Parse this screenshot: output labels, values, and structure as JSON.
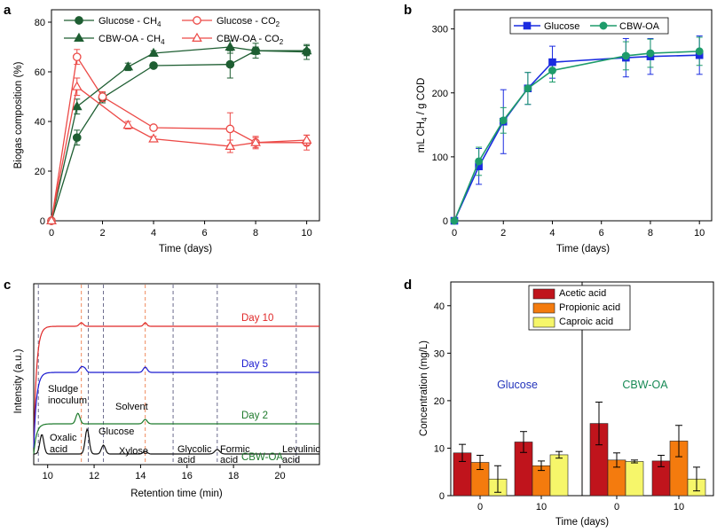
{
  "panels": {
    "a": "a",
    "b": "b",
    "c": "c",
    "d": "d"
  },
  "chart_data": [
    {
      "panel": "a",
      "type": "line",
      "xlabel": "Time (days)",
      "ylabel": "Biogas composition (%)",
      "xlim": [
        0,
        10.5
      ],
      "ylim": [
        0,
        85
      ],
      "xticks": [
        0,
        2,
        4,
        6,
        8,
        10
      ],
      "yticks": [
        0,
        20,
        40,
        60,
        80
      ],
      "legend_position": "top",
      "series": [
        {
          "name": "Glucose - CH4",
          "label": "Glucose - CH",
          "sub": "4",
          "color": "#1e5e32",
          "marker": "circle",
          "fill": true,
          "x": [
            0,
            1,
            2,
            4,
            7,
            8,
            10
          ],
          "y": [
            0,
            33.5,
            49.5,
            62.5,
            63,
            68.5,
            68
          ],
          "err": [
            0,
            3,
            2,
            1,
            5.5,
            3,
            3
          ]
        },
        {
          "name": "Glucose - CO2",
          "label": "Glucose - CO",
          "sub": "2",
          "color": "#ec4a47",
          "marker": "circle",
          "fill": false,
          "x": [
            0,
            1,
            2,
            4,
            7,
            8,
            10
          ],
          "y": [
            0,
            66,
            50,
            37.5,
            37,
            31.5,
            31.5
          ],
          "err": [
            0,
            3,
            2,
            1,
            6.5,
            2.5,
            3
          ]
        },
        {
          "name": "CBW-OA - CH4",
          "label": "CBW-OA - CH",
          "sub": "4",
          "color": "#1e5e32",
          "marker": "triangle",
          "fill": true,
          "x": [
            0,
            1,
            3,
            4,
            7,
            8,
            10
          ],
          "y": [
            0,
            46,
            62,
            67.5,
            70,
            68.5,
            68.5
          ],
          "err": [
            0,
            3,
            1.5,
            1,
            2.5,
            1.5,
            2
          ]
        },
        {
          "name": "CBW-OA - CO2",
          "label": "CBW-OA - CO",
          "sub": "2",
          "color": "#ec4a47",
          "marker": "triangle",
          "fill": false,
          "x": [
            0,
            1,
            3,
            4,
            7,
            8,
            10
          ],
          "y": [
            0,
            54,
            38.5,
            33,
            30,
            31.5,
            32.5
          ],
          "err": [
            0,
            3.5,
            1.5,
            1,
            2.5,
            2,
            2
          ]
        }
      ]
    },
    {
      "panel": "b",
      "type": "line",
      "xlabel": "Time (days)",
      "ylabel": "mL CH",
      "ylabel_sub": "4",
      "ylabel_rest": " / g COD",
      "xlim": [
        0,
        10.5
      ],
      "ylim": [
        0,
        330
      ],
      "xticks": [
        0,
        2,
        4,
        6,
        8,
        10
      ],
      "yticks": [
        0,
        100,
        200,
        300
      ],
      "legend_position": "top",
      "series": [
        {
          "name": "Glucose",
          "label": "Glucose",
          "color": "#1a2be0",
          "marker": "square",
          "x": [
            0,
            1,
            2,
            3,
            4,
            7,
            8,
            10
          ],
          "y": [
            0,
            85,
            155,
            207,
            248,
            255,
            257,
            259
          ],
          "err": [
            0,
            28,
            50,
            25,
            25,
            30,
            28,
            30
          ]
        },
        {
          "name": "CBW-OA",
          "label": "CBW-OA",
          "color": "#1e9c6b",
          "marker": "circle",
          "x": [
            0,
            1,
            2,
            3,
            4,
            7,
            8,
            10
          ],
          "y": [
            0,
            93,
            157,
            207,
            235,
            258,
            262,
            265
          ],
          "err": [
            0,
            22,
            20,
            25,
            18,
            22,
            22,
            22
          ]
        }
      ]
    },
    {
      "panel": "c",
      "type": "line",
      "xlabel": "Retention time (min)",
      "ylabel": "Intensity (a.u.)",
      "xlim": [
        9.4,
        21.7
      ],
      "xticks": [
        10,
        12,
        14,
        16,
        18,
        20
      ],
      "dashed_lines": [
        {
          "x": 9.6,
          "color": "#6b6b8c"
        },
        {
          "x": 11.45,
          "color": "#f08a5d"
        },
        {
          "x": 11.75,
          "color": "#6b6b8c"
        },
        {
          "x": 12.4,
          "color": "#6b6b8c"
        },
        {
          "x": 14.2,
          "color": "#f08a5d"
        },
        {
          "x": 15.4,
          "color": "#6b6b8c"
        },
        {
          "x": 17.3,
          "color": "#6b6b8c"
        },
        {
          "x": 20.7,
          "color": "#6b6b8c"
        }
      ],
      "traces": [
        {
          "name": "Day 10",
          "color": "#e02828",
          "level": 0.9
        },
        {
          "name": "Day 5",
          "color": "#1a1ad0",
          "level": 0.63
        },
        {
          "name": "Day 2",
          "color": "#1e7a2c",
          "level": 0.33
        },
        {
          "name": "CBW-OA",
          "color": "#111111",
          "level": 0.0
        }
      ],
      "trace_labels": [
        "Day 10",
        "Day 5",
        "Day 2",
        "CBW-OA"
      ],
      "peak_labels": [
        "Sludge",
        "inoculum",
        "Solvent",
        "Glucose",
        "Oxalic",
        "acid",
        "Xylose",
        "Glycolic",
        "acid",
        "Formic",
        "acid",
        "Levulinic",
        "acid"
      ]
    },
    {
      "panel": "d",
      "type": "bar",
      "xlabel": "Time (days)",
      "ylabel": "Concentration (mg/L)",
      "ylim": [
        0,
        45
      ],
      "yticks": [
        0,
        10,
        20,
        30,
        40
      ],
      "groups": [
        {
          "section": "Glucose",
          "tick": "0",
          "values": [
            9,
            7,
            3.5
          ],
          "err": [
            1.8,
            1.5,
            2.8
          ]
        },
        {
          "section": "Glucose",
          "tick": "10",
          "values": [
            11.3,
            6.3,
            8.6
          ],
          "err": [
            2.2,
            1,
            0.7
          ]
        },
        {
          "section": "CBW-OA",
          "tick": "0",
          "values": [
            15.2,
            7.5,
            7.2
          ],
          "err": [
            4.5,
            1.5,
            0.3
          ]
        },
        {
          "section": "CBW-OA",
          "tick": "10",
          "values": [
            7.3,
            11.5,
            3.5
          ],
          "err": [
            1.2,
            3.3,
            2.5
          ]
        }
      ],
      "series": [
        {
          "name": "Acetic acid",
          "color": "#c0141c"
        },
        {
          "name": "Propionic acid",
          "color": "#f47b0e"
        },
        {
          "name": "Caproic acid",
          "color": "#f6f66a"
        }
      ],
      "section_labels": [
        {
          "text": "Glucose",
          "color": "#2233bb"
        },
        {
          "text": "CBW-OA",
          "color": "#178a55"
        }
      ],
      "legend_position": "top-center"
    }
  ]
}
